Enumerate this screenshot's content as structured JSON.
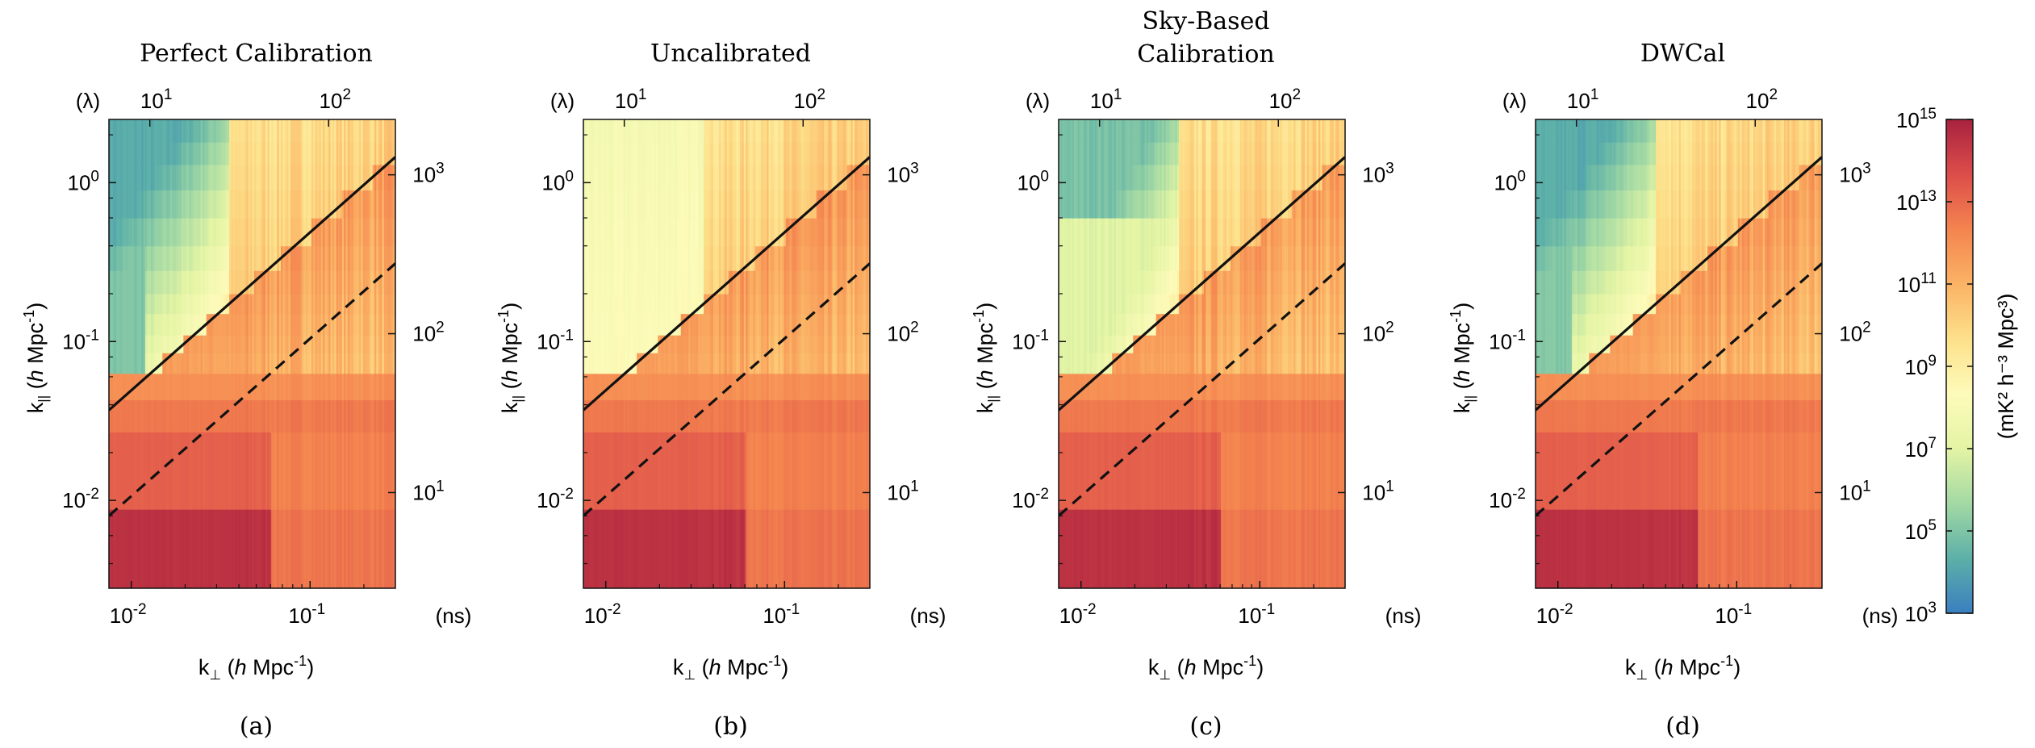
{
  "figure": {
    "colorbar": {
      "label": "(mK² h⁻³ Mpc³)",
      "ticks": [
        {
          "base": "10",
          "exp": "3",
          "value": 3
        },
        {
          "base": "10",
          "exp": "5",
          "value": 5
        },
        {
          "base": "10",
          "exp": "7",
          "value": 7
        },
        {
          "base": "10",
          "exp": "9",
          "value": 9
        },
        {
          "base": "10",
          "exp": "11",
          "value": 11
        },
        {
          "base": "10",
          "exp": "13",
          "value": 13
        },
        {
          "base": "10",
          "exp": "15",
          "value": 15
        }
      ],
      "range_log10": [
        3,
        15
      ],
      "colormap": [
        "#3a7fc0",
        "#5cb0a8",
        "#a3d9a4",
        "#e3f4a4",
        "#fdfbba",
        "#fde08a",
        "#fbb365",
        "#f4844f",
        "#dc4d4a",
        "#a8223f"
      ]
    }
  },
  "chart_data": [
    {
      "type": "heatmap",
      "panel_label": "(a)",
      "title": "Perfect Calibration",
      "xlabel": "k⊥ (h Mpc⁻¹)",
      "ylabel": "k|| (h Mpc⁻¹)",
      "top_axis_label": "(λ)",
      "right_axis_label": "(ns)",
      "xlim": [
        0.0075,
        0.3
      ],
      "ylim": [
        0.0028,
        2.5
      ],
      "top_ticks": [
        {
          "base": "10",
          "exp": "1",
          "value": 10
        },
        {
          "base": "10",
          "exp": "2",
          "value": 100
        }
      ],
      "right_ticks": [
        {
          "base": "10",
          "exp": "1",
          "value": 10
        },
        {
          "base": "10",
          "exp": "2",
          "value": 100
        },
        {
          "base": "10",
          "exp": "3",
          "value": 1000
        }
      ],
      "x_ticks": [
        {
          "base": "10",
          "exp": "-2",
          "value": 0.01
        },
        {
          "base": "10",
          "exp": "-1",
          "value": 0.1
        }
      ],
      "y_ticks": [
        {
          "base": "10",
          "exp": "-2",
          "value": 0.01
        },
        {
          "base": "10",
          "exp": "-1",
          "value": 0.1
        },
        {
          "base": "10",
          "exp": "0",
          "value": 1
        }
      ],
      "window_quality": "clean",
      "horizon_line": {
        "points": [
          [
            0.0075,
            0.037
          ],
          [
            0.3,
            1.45
          ]
        ],
        "style": "solid"
      },
      "beam_line": {
        "points": [
          [
            0.0075,
            0.008
          ],
          [
            0.3,
            0.31
          ]
        ],
        "style": "dashed"
      }
    },
    {
      "type": "heatmap",
      "panel_label": "(b)",
      "title": "Uncalibrated",
      "xlabel": "k⊥ (h Mpc⁻¹)",
      "ylabel": "k|| (h Mpc⁻¹)",
      "top_axis_label": "(λ)",
      "right_axis_label": "(ns)",
      "xlim": [
        0.0075,
        0.3
      ],
      "ylim": [
        0.0028,
        2.5
      ],
      "top_ticks": [
        {
          "base": "10",
          "exp": "1",
          "value": 10
        },
        {
          "base": "10",
          "exp": "2",
          "value": 100
        }
      ],
      "right_ticks": [
        {
          "base": "10",
          "exp": "1",
          "value": 10
        },
        {
          "base": "10",
          "exp": "2",
          "value": 100
        },
        {
          "base": "10",
          "exp": "3",
          "value": 1000
        }
      ],
      "x_ticks": [
        {
          "base": "10",
          "exp": "-2",
          "value": 0.01
        },
        {
          "base": "10",
          "exp": "-1",
          "value": 0.1
        }
      ],
      "y_ticks": [
        {
          "base": "10",
          "exp": "-2",
          "value": 0.01
        },
        {
          "base": "10",
          "exp": "-1",
          "value": 0.1
        },
        {
          "base": "10",
          "exp": "0",
          "value": 1
        }
      ],
      "window_quality": "contaminated",
      "horizon_line": {
        "points": [
          [
            0.0075,
            0.037
          ],
          [
            0.3,
            1.45
          ]
        ],
        "style": "solid"
      },
      "beam_line": {
        "points": [
          [
            0.0075,
            0.008
          ],
          [
            0.3,
            0.31
          ]
        ],
        "style": "dashed"
      }
    },
    {
      "type": "heatmap",
      "panel_label": "(c)",
      "title": "Sky-Based Calibration",
      "title_lines": [
        "Sky-Based",
        "Calibration"
      ],
      "xlabel": "k⊥ (h Mpc⁻¹)",
      "ylabel": "k|| (h Mpc⁻¹)",
      "top_axis_label": "(λ)",
      "right_axis_label": "(ns)",
      "xlim": [
        0.0075,
        0.3
      ],
      "ylim": [
        0.0028,
        2.5
      ],
      "top_ticks": [
        {
          "base": "10",
          "exp": "1",
          "value": 10
        },
        {
          "base": "10",
          "exp": "2",
          "value": 100
        }
      ],
      "right_ticks": [
        {
          "base": "10",
          "exp": "1",
          "value": 10
        },
        {
          "base": "10",
          "exp": "2",
          "value": 100
        },
        {
          "base": "10",
          "exp": "3",
          "value": 1000
        }
      ],
      "x_ticks": [
        {
          "base": "10",
          "exp": "-2",
          "value": 0.01
        },
        {
          "base": "10",
          "exp": "-1",
          "value": 0.1
        }
      ],
      "y_ticks": [
        {
          "base": "10",
          "exp": "-2",
          "value": 0.01
        },
        {
          "base": "10",
          "exp": "-1",
          "value": 0.1
        },
        {
          "base": "10",
          "exp": "0",
          "value": 1
        }
      ],
      "window_quality": "partial",
      "horizon_line": {
        "points": [
          [
            0.0075,
            0.037
          ],
          [
            0.3,
            1.45
          ]
        ],
        "style": "solid"
      },
      "beam_line": {
        "points": [
          [
            0.0075,
            0.008
          ],
          [
            0.3,
            0.31
          ]
        ],
        "style": "dashed"
      }
    },
    {
      "type": "heatmap",
      "panel_label": "(d)",
      "title": "DWCal",
      "xlabel": "k⊥ (h Mpc⁻¹)",
      "ylabel": "k|| (h Mpc⁻¹)",
      "top_axis_label": "(λ)",
      "right_axis_label": "(ns)",
      "xlim": [
        0.0075,
        0.3
      ],
      "ylim": [
        0.0028,
        2.5
      ],
      "top_ticks": [
        {
          "base": "10",
          "exp": "1",
          "value": 10
        },
        {
          "base": "10",
          "exp": "2",
          "value": 100
        }
      ],
      "right_ticks": [
        {
          "base": "10",
          "exp": "1",
          "value": 10
        },
        {
          "base": "10",
          "exp": "2",
          "value": 100
        },
        {
          "base": "10",
          "exp": "3",
          "value": 1000
        }
      ],
      "x_ticks": [
        {
          "base": "10",
          "exp": "-2",
          "value": 0.01
        },
        {
          "base": "10",
          "exp": "-1",
          "value": 0.1
        }
      ],
      "y_ticks": [
        {
          "base": "10",
          "exp": "-2",
          "value": 0.01
        },
        {
          "base": "10",
          "exp": "-1",
          "value": 0.1
        },
        {
          "base": "10",
          "exp": "0",
          "value": 1
        }
      ],
      "window_quality": "clean",
      "horizon_line": {
        "points": [
          [
            0.0075,
            0.037
          ],
          [
            0.3,
            1.45
          ]
        ],
        "style": "solid"
      },
      "beam_line": {
        "points": [
          [
            0.0075,
            0.008
          ],
          [
            0.3,
            0.31
          ]
        ],
        "style": "dashed"
      }
    }
  ]
}
